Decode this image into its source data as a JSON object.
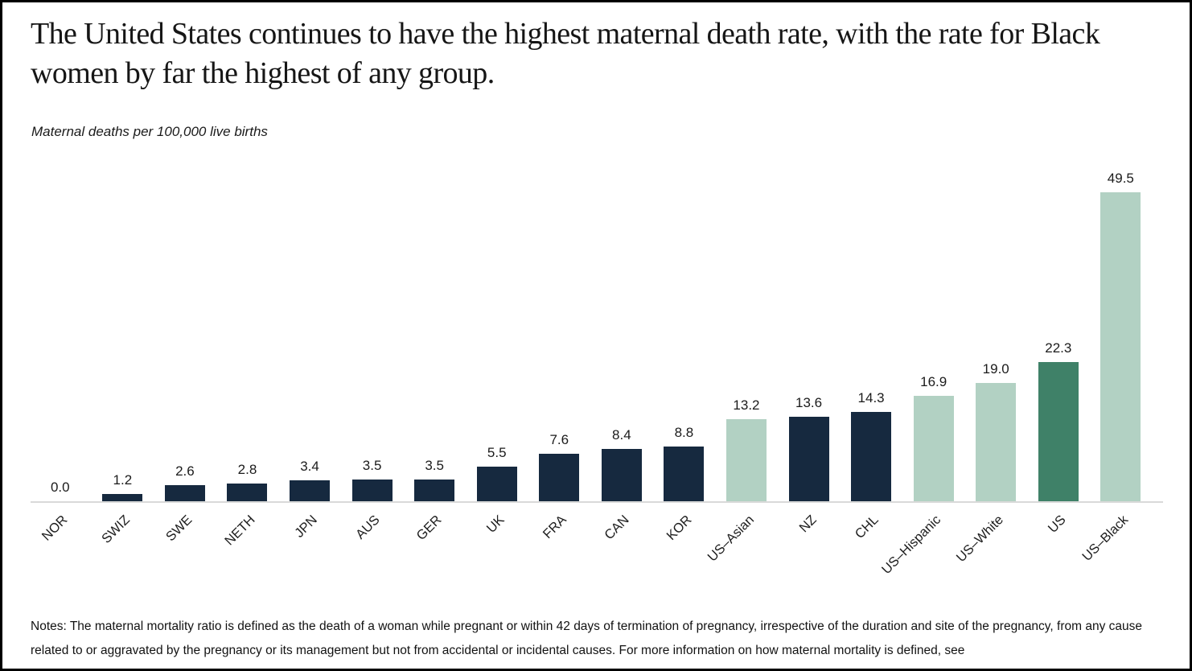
{
  "title": "The United States continues to have the highest maternal death rate, with the rate for Black women by far the highest of any group.",
  "subtitle": "Maternal deaths per 100,000 live births",
  "notes": "Notes: The maternal mortality ratio is defined as the death of a woman while pregnant or within 42 days of termination of pregnancy, irrespective of the duration and site of the pregnancy, from any cause related to or aggravated by the pregnancy or its management but not from accidental or incidental causes. For more information on how maternal mortality is defined, see",
  "chart_data": {
    "type": "bar",
    "title": "The United States continues to have the highest maternal death rate, with the rate for Black women by far the highest of any group.",
    "ylabel": "Maternal deaths per 100,000 live births",
    "xlabel": "",
    "categories": [
      "NOR",
      "SWIZ",
      "SWE",
      "NETH",
      "JPN",
      "AUS",
      "GER",
      "UK",
      "FRA",
      "CAN",
      "KOR",
      "US–Asian",
      "NZ",
      "CHL",
      "US–Hispanic",
      "US–White",
      "US",
      "US–Black"
    ],
    "values": [
      0.0,
      1.2,
      2.6,
      2.8,
      3.4,
      3.5,
      3.5,
      5.5,
      7.6,
      8.4,
      8.8,
      13.2,
      13.6,
      14.3,
      16.9,
      19.0,
      22.3,
      49.5
    ],
    "value_labels": [
      "0.0",
      "1.2",
      "2.6",
      "2.8",
      "3.4",
      "3.5",
      "3.5",
      "5.5",
      "7.6",
      "8.4",
      "8.8",
      "13.2",
      "13.6",
      "14.3",
      "16.9",
      "19.0",
      "22.3",
      "49.5"
    ],
    "groups": [
      "country",
      "country",
      "country",
      "country",
      "country",
      "country",
      "country",
      "country",
      "country",
      "country",
      "country",
      "us_group",
      "country",
      "country",
      "us_group",
      "us_group",
      "us_total",
      "us_group"
    ],
    "colors": {
      "country": "#16293f",
      "us_group": "#b2d1c3",
      "us_total": "#3f8168"
    },
    "ylim": [
      0,
      49.5
    ],
    "grid": false,
    "legend": "none",
    "data_labels_shown": true,
    "x_tick_rotation_deg": -45
  }
}
